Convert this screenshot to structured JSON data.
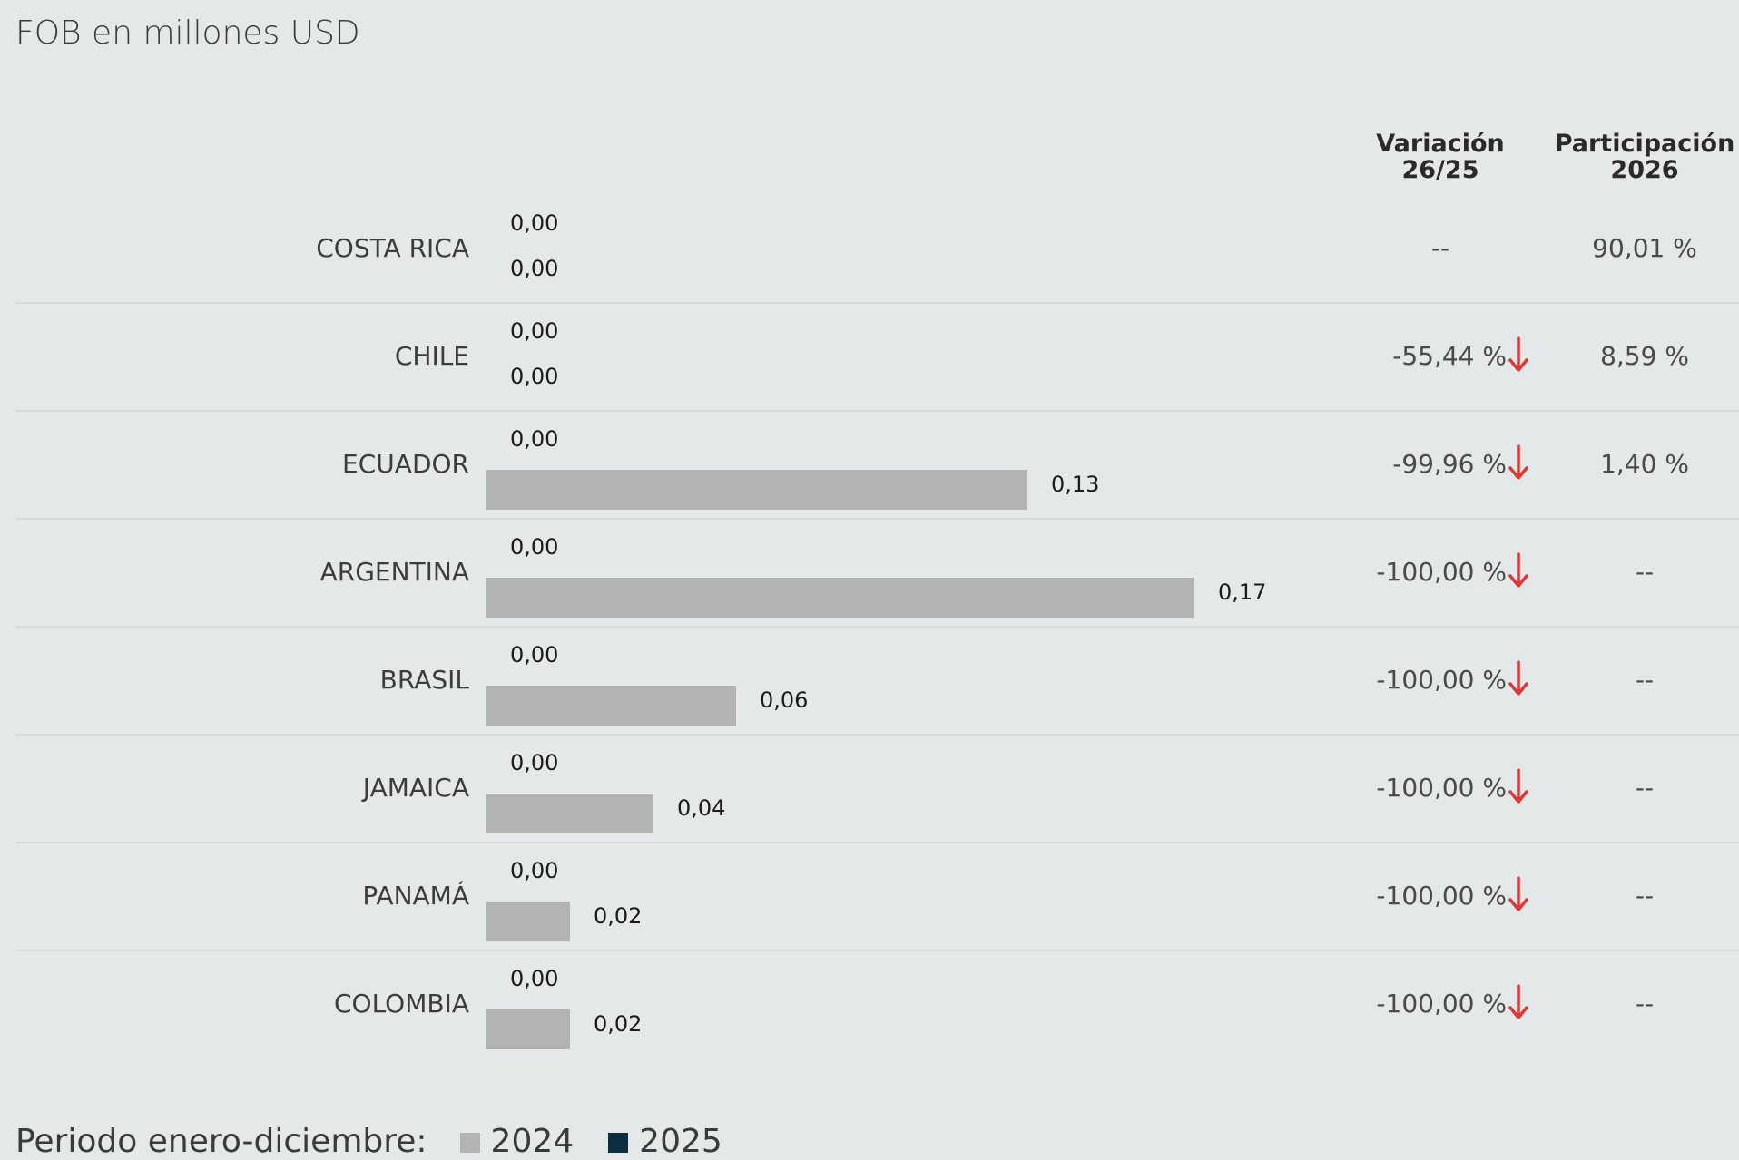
{
  "subtitle": "FOB en millones USD",
  "headers": {
    "variation": [
      "Variación",
      "26/25"
    ],
    "share": [
      "Participación",
      "2026"
    ]
  },
  "legend": {
    "label": "Periodo enero-diciembre:",
    "items": [
      {
        "label": "2024",
        "color": "#b3b3b3"
      },
      {
        "label": "2025",
        "color": "#0d2d42"
      }
    ]
  },
  "colors": {
    "bar_prior": "#b3b3b3",
    "bar_current": "#0d2d42",
    "down_arrow": "#d9393a"
  },
  "chart_data": {
    "type": "bar",
    "orientation": "horizontal",
    "categories": [
      "COSTA RICA",
      "CHILE",
      "ECUADOR",
      "ARGENTINA",
      "BRASIL",
      "JAMAICA",
      "PANAMÁ",
      "COLOMBIA"
    ],
    "series": [
      {
        "name": "2025",
        "values": [
          0.0,
          0.0,
          0.0,
          0.0,
          0.0,
          0.0,
          0.0,
          0.0
        ],
        "labels": [
          "0,00",
          "0,00",
          "0,00",
          "0,00",
          "0,00",
          "0,00",
          "0,00",
          "0,00"
        ]
      },
      {
        "name": "2024",
        "values": [
          0.0,
          0.0,
          0.13,
          0.17,
          0.06,
          0.04,
          0.02,
          0.02
        ],
        "labels": [
          "0,00",
          "0,00",
          "0,13",
          "0,17",
          "0,06",
          "0,04",
          "0,02",
          "0,02"
        ]
      }
    ],
    "variation": [
      "--",
      "-55,44 %",
      "-99,96 %",
      "-100,00 %",
      "-100,00 %",
      "-100,00 %",
      "-100,00 %",
      "-100,00 %"
    ],
    "variation_down": [
      false,
      true,
      true,
      true,
      true,
      true,
      true,
      true
    ],
    "share": [
      "90,01 %",
      "8,59 %",
      "1,40 %",
      "--",
      "--",
      "--",
      "--",
      "--"
    ]
  }
}
